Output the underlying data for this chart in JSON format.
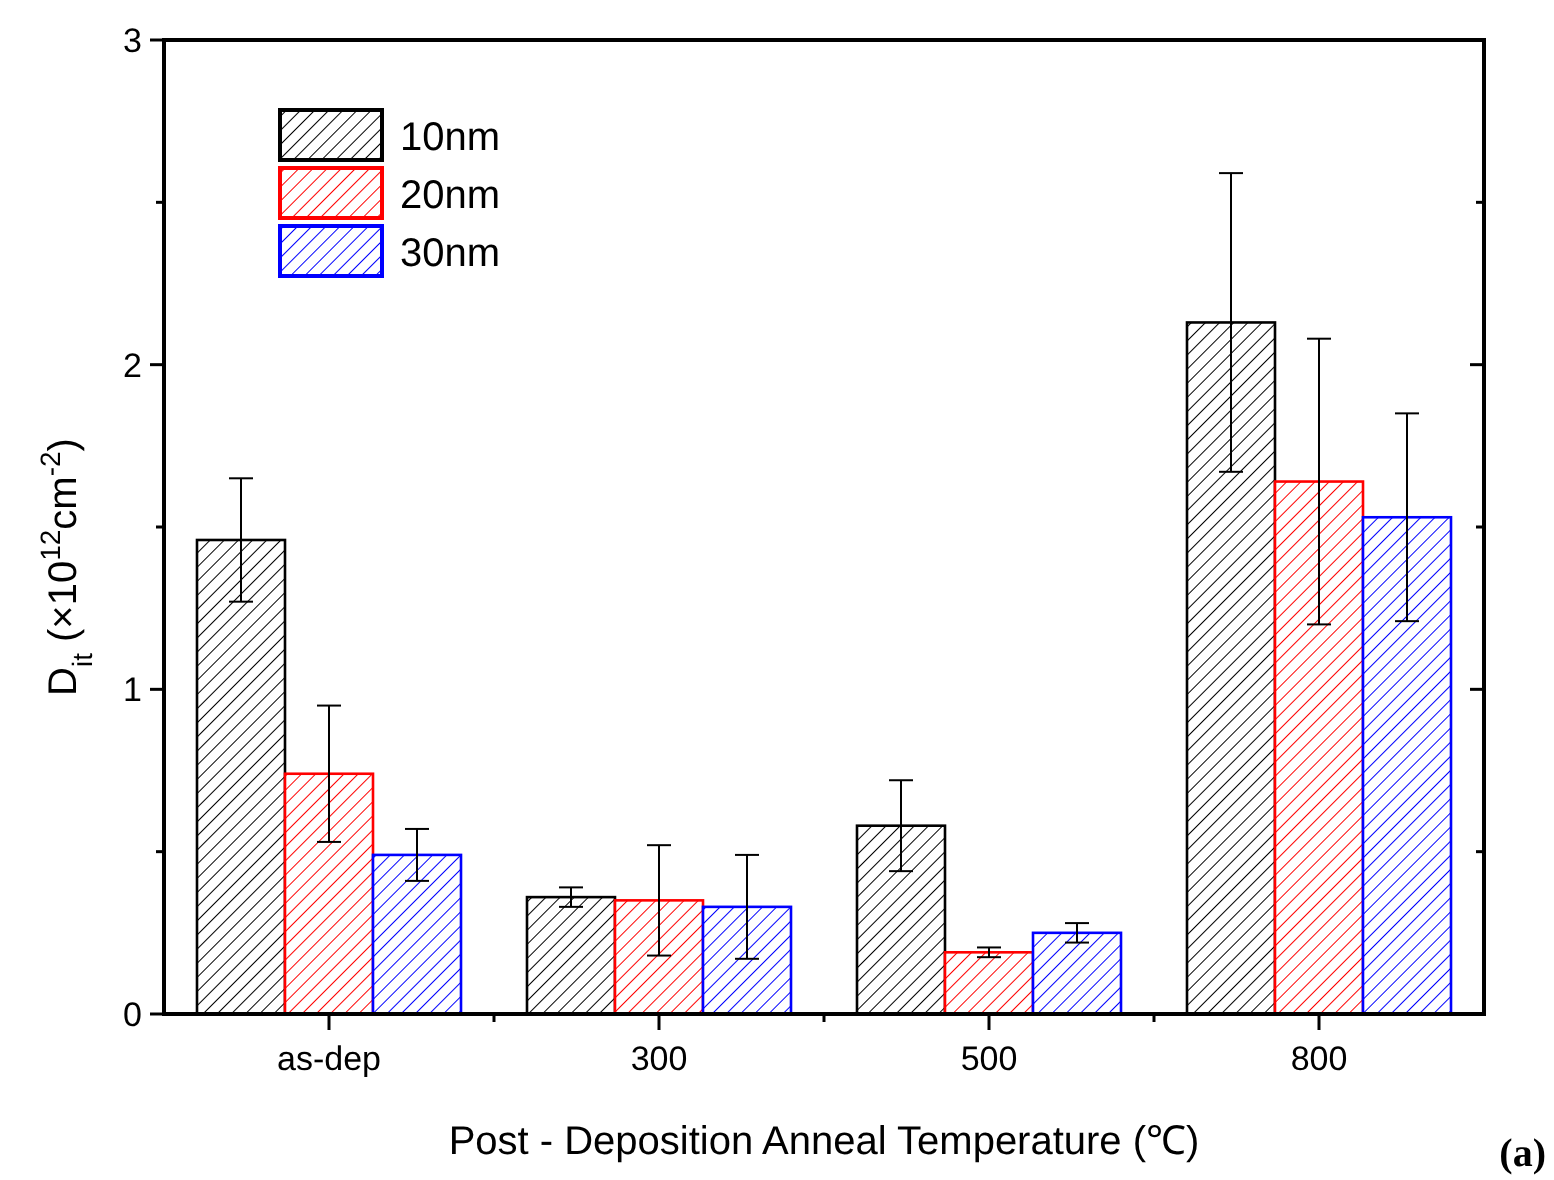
{
  "chart_data": {
    "type": "bar",
    "categories": [
      "as-dep",
      "300",
      "500",
      "800"
    ],
    "series": [
      {
        "name": "10nm",
        "color": "#000000",
        "values": [
          1.46,
          0.36,
          0.58,
          2.13
        ],
        "errors": [
          0.19,
          0.03,
          0.14,
          0.46
        ]
      },
      {
        "name": "20nm",
        "color": "#ff0000",
        "values": [
          0.74,
          0.35,
          0.19,
          1.64
        ],
        "errors": [
          0.21,
          0.17,
          0.015,
          0.44
        ]
      },
      {
        "name": "30nm",
        "color": "#0000ff",
        "values": [
          0.49,
          0.33,
          0.25,
          1.53
        ],
        "errors": [
          0.08,
          0.16,
          0.03,
          0.32
        ]
      }
    ],
    "xlabel": "Post - Deposition Anneal Temperature (℃)",
    "ylabel": "D$_{it}$ (×10$^{12}$cm$^{-2}$)",
    "ylim": [
      0,
      3
    ],
    "yticks": [
      0,
      {
        "value": 0.5,
        "label": null
      },
      1,
      {
        "value": 1.5,
        "label": null
      },
      2,
      {
        "value": 2.5,
        "label": null
      },
      3
    ],
    "legend": "top left",
    "annotations": [
      "(a)"
    ]
  }
}
